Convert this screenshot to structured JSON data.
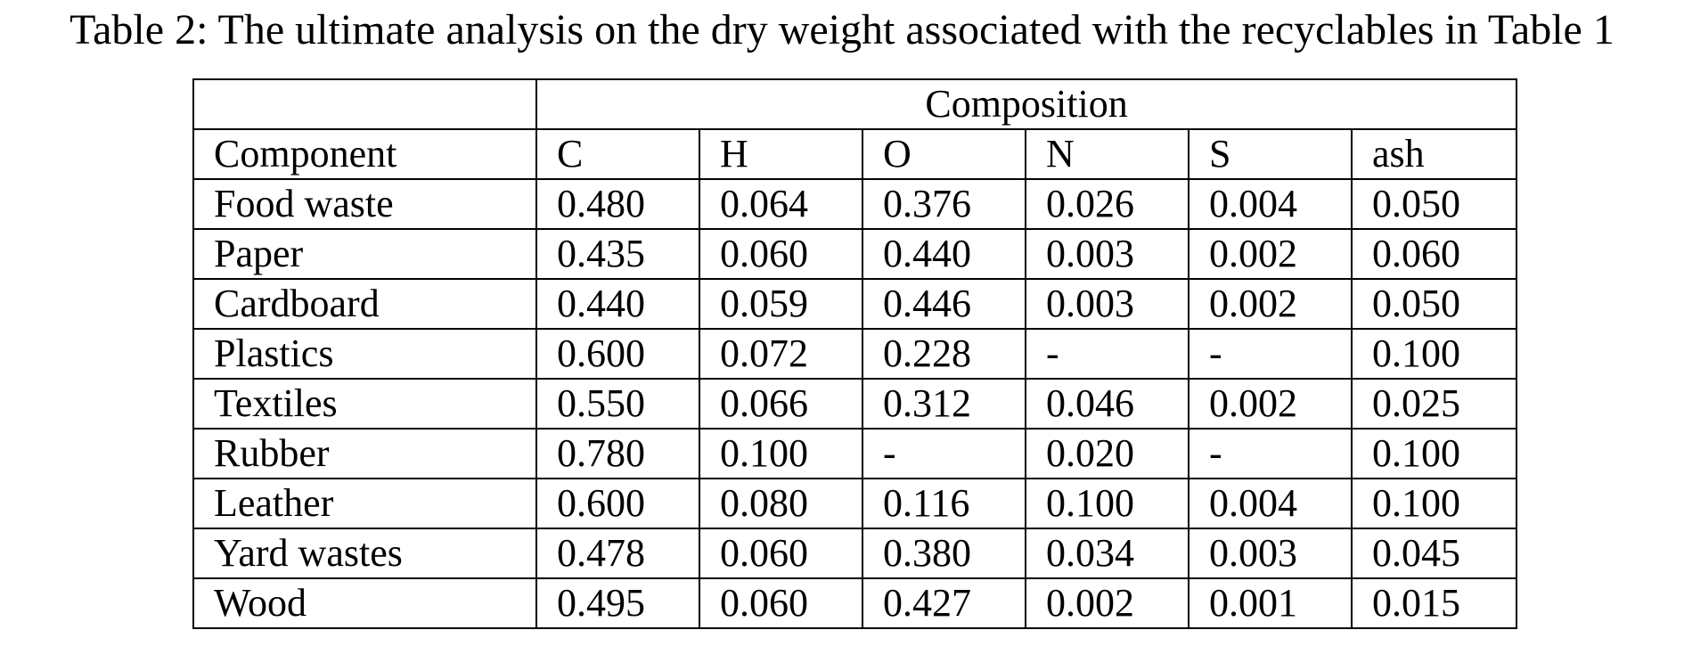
{
  "caption": "Table 2: The ultimate analysis on the dry weight associated with the recyclables in Table 1",
  "table": {
    "group_header": "Composition",
    "columns": [
      "Component",
      "C",
      "H",
      "O",
      "N",
      "S",
      "ash"
    ],
    "rows": [
      [
        "Food waste",
        "0.480",
        "0.064",
        "0.376",
        "0.026",
        "0.004",
        "0.050"
      ],
      [
        "Paper",
        "0.435",
        "0.060",
        "0.440",
        "0.003",
        "0.002",
        "0.060"
      ],
      [
        "Cardboard",
        "0.440",
        "0.059",
        "0.446",
        "0.003",
        "0.002",
        "0.050"
      ],
      [
        "Plastics",
        "0.600",
        "0.072",
        "0.228",
        "-",
        "-",
        "0.100"
      ],
      [
        "Textiles",
        "0.550",
        "0.066",
        "0.312",
        "0.046",
        "0.002",
        "0.025"
      ],
      [
        "Rubber",
        "0.780",
        "0.100",
        "-",
        "0.020",
        "-",
        "0.100"
      ],
      [
        "Leather",
        "0.600",
        "0.080",
        "0.116",
        "0.100",
        "0.004",
        "0.100"
      ],
      [
        "Yard wastes",
        "0.478",
        "0.060",
        "0.380",
        "0.034",
        "0.003",
        "0.045"
      ],
      [
        "Wood",
        "0.495",
        "0.060",
        "0.427",
        "0.002",
        "0.001",
        "0.015"
      ]
    ]
  }
}
